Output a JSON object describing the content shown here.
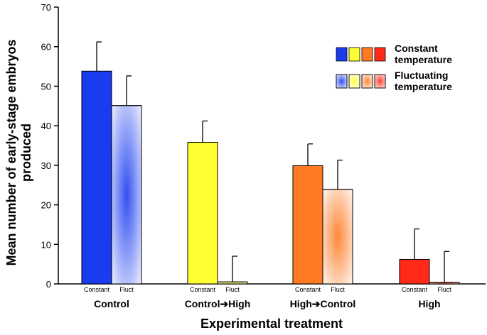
{
  "chart_data": {
    "type": "bar",
    "title": "",
    "xlabel": "Experimental treatment",
    "ylabel": [
      "Mean number of early-stage embryos",
      "produced"
    ],
    "ylim": [
      0,
      70
    ],
    "yticks": [
      0,
      10,
      20,
      30,
      40,
      50,
      60,
      70
    ],
    "categories": [
      "Control",
      "Control➔High",
      "High➔Control",
      "High"
    ],
    "bar_labels": [
      "Constant",
      "Fluct"
    ],
    "series": [
      {
        "name": "Constant temperature",
        "values": [
          53.8,
          35.8,
          29.9,
          6.2
        ],
        "error": [
          7.4,
          5.4,
          5.5,
          7.7
        ]
      },
      {
        "name": "Fluctuating temperature",
        "values": [
          45.1,
          0.5,
          23.9,
          0.4
        ],
        "error": [
          7.5,
          6.5,
          7.4,
          7.8
        ]
      }
    ],
    "category_colors": [
      "#1a3cf0",
      "#ffff33",
      "#ff7a22",
      "#ff2a1a"
    ],
    "legend": {
      "placement": "top-right",
      "constant_label": [
        "Constant",
        "temperature"
      ],
      "fluct_label": [
        "Fluctuating",
        "temperature"
      ]
    },
    "grid": false
  }
}
